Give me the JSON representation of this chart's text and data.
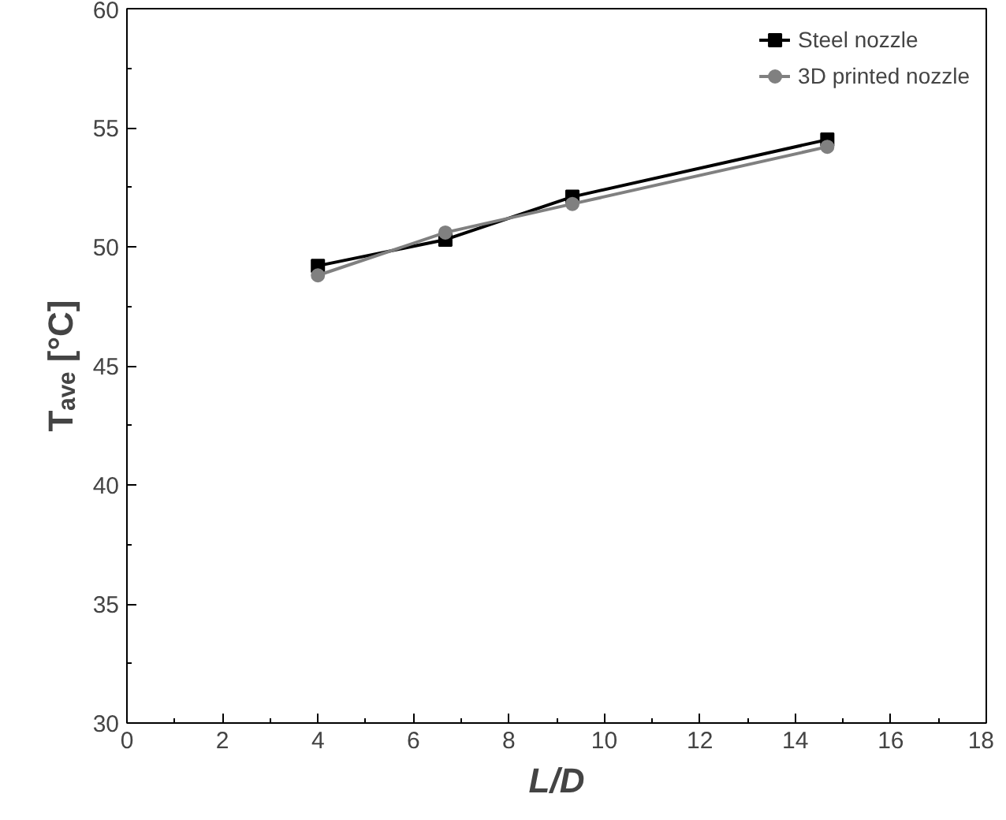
{
  "chart_data": {
    "type": "line",
    "xlabel": "L/D",
    "ylabel": "Tₐᵥₑ [°C]",
    "x": [
      4,
      6.67,
      9.33,
      14.67
    ],
    "series": [
      {
        "name": "Steel nozzle",
        "color": "#000000",
        "marker": "square",
        "values": [
          49.2,
          50.3,
          52.1,
          54.5
        ]
      },
      {
        "name": "3D printed nozzle",
        "color": "#808080",
        "marker": "circle",
        "values": [
          48.8,
          50.6,
          51.8,
          54.2
        ]
      }
    ],
    "xlim": [
      0,
      18
    ],
    "xticks": [
      0,
      2,
      4,
      6,
      8,
      10,
      12,
      14,
      16,
      18
    ],
    "ylim": [
      30,
      60
    ],
    "yticks": [
      30,
      35,
      40,
      45,
      50,
      55,
      60
    ],
    "grid": false,
    "legend": "top right",
    "line_style": "solid"
  }
}
